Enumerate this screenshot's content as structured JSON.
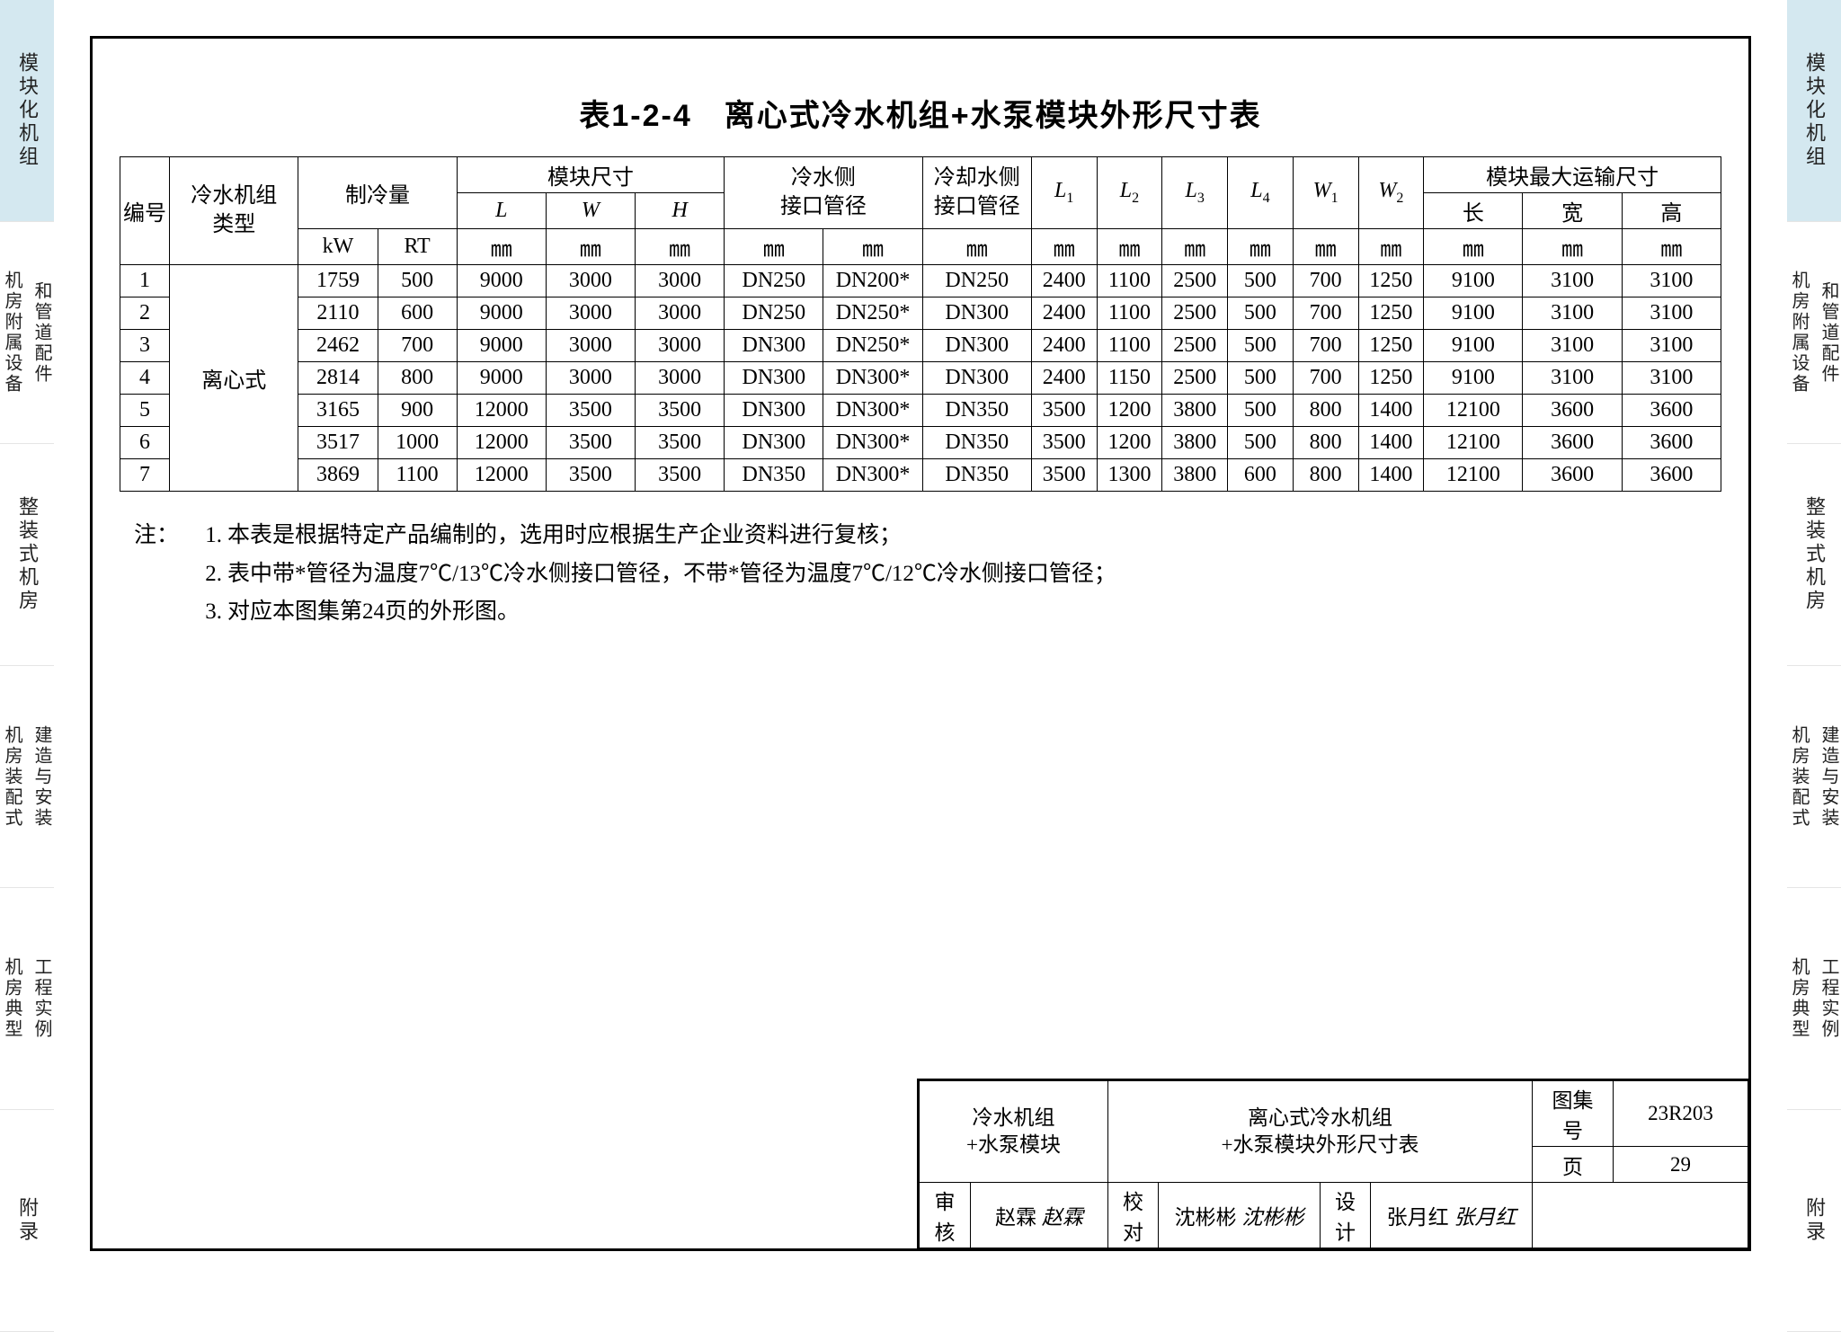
{
  "tabs": [
    {
      "label": "模块化机组",
      "active": true,
      "double": false
    },
    {
      "label": [
        "机房附属设备",
        "和管道配件"
      ],
      "active": false,
      "double": true
    },
    {
      "label": "整装式机房",
      "active": false,
      "double": false
    },
    {
      "label": [
        "机房装配式",
        "建造与安装"
      ],
      "active": false,
      "double": true
    },
    {
      "label": [
        "机房典型",
        "工程实例"
      ],
      "active": false,
      "double": true
    },
    {
      "label": "附录",
      "active": false,
      "double": false
    }
  ],
  "title": "表1-2-4　离心式冷水机组+水泵模块外形尺寸表",
  "headers": {
    "r1": [
      "编号",
      "冷水机组类型",
      "制冷量",
      "模块尺寸",
      "冷水侧接口管径",
      "冷却水侧接口管径",
      "L1",
      "L2",
      "L3",
      "L4",
      "W1",
      "W2",
      "模块最大运输尺寸"
    ],
    "r2_module": [
      "L",
      "W",
      "H"
    ],
    "r2_transport": [
      "长",
      "宽",
      "高"
    ],
    "r2_cool_unit": [
      "kW",
      "RT"
    ],
    "r3_units": [
      "㎜",
      "㎜",
      "㎜",
      "㎜",
      "㎜",
      "㎜",
      "㎜",
      "㎜",
      "㎜",
      "㎜",
      "㎜",
      "㎜",
      "㎜",
      "㎜",
      "㎜"
    ]
  },
  "row_type_label": "离心式",
  "rows": [
    {
      "no": "1",
      "kW": "1759",
      "RT": "500",
      "L": "9000",
      "W": "3000",
      "H": "3000",
      "cw1": "DN250",
      "cw2": "DN200*",
      "cool": "DN250",
      "L1": "2400",
      "L2": "1100",
      "L3": "2500",
      "L4": "500",
      "W1": "700",
      "W2": "1250",
      "TL": "9100",
      "TW": "3100",
      "TH": "3100"
    },
    {
      "no": "2",
      "kW": "2110",
      "RT": "600",
      "L": "9000",
      "W": "3000",
      "H": "3000",
      "cw1": "DN250",
      "cw2": "DN250*",
      "cool": "DN300",
      "L1": "2400",
      "L2": "1100",
      "L3": "2500",
      "L4": "500",
      "W1": "700",
      "W2": "1250",
      "TL": "9100",
      "TW": "3100",
      "TH": "3100"
    },
    {
      "no": "3",
      "kW": "2462",
      "RT": "700",
      "L": "9000",
      "W": "3000",
      "H": "3000",
      "cw1": "DN300",
      "cw2": "DN250*",
      "cool": "DN300",
      "L1": "2400",
      "L2": "1100",
      "L3": "2500",
      "L4": "500",
      "W1": "700",
      "W2": "1250",
      "TL": "9100",
      "TW": "3100",
      "TH": "3100"
    },
    {
      "no": "4",
      "kW": "2814",
      "RT": "800",
      "L": "9000",
      "W": "3000",
      "H": "3000",
      "cw1": "DN300",
      "cw2": "DN300*",
      "cool": "DN300",
      "L1": "2400",
      "L2": "1150",
      "L3": "2500",
      "L4": "500",
      "W1": "700",
      "W2": "1250",
      "TL": "9100",
      "TW": "3100",
      "TH": "3100"
    },
    {
      "no": "5",
      "kW": "3165",
      "RT": "900",
      "L": "12000",
      "W": "3500",
      "H": "3500",
      "cw1": "DN300",
      "cw2": "DN300*",
      "cool": "DN350",
      "L1": "3500",
      "L2": "1200",
      "L3": "3800",
      "L4": "500",
      "W1": "800",
      "W2": "1400",
      "TL": "12100",
      "TW": "3600",
      "TH": "3600"
    },
    {
      "no": "6",
      "kW": "3517",
      "RT": "1000",
      "L": "12000",
      "W": "3500",
      "H": "3500",
      "cw1": "DN300",
      "cw2": "DN300*",
      "cool": "DN350",
      "L1": "3500",
      "L2": "1200",
      "L3": "3800",
      "L4": "500",
      "W1": "800",
      "W2": "1400",
      "TL": "12100",
      "TW": "3600",
      "TH": "3600"
    },
    {
      "no": "7",
      "kW": "3869",
      "RT": "1100",
      "L": "12000",
      "W": "3500",
      "H": "3500",
      "cw1": "DN350",
      "cw2": "DN300*",
      "cool": "DN350",
      "L1": "3500",
      "L2": "1300",
      "L3": "3800",
      "L4": "600",
      "W1": "800",
      "W2": "1400",
      "TL": "12100",
      "TW": "3600",
      "TH": "3600"
    }
  ],
  "notes_label": "注：",
  "notes": [
    "本表是根据特定产品编制的，选用时应根据生产企业资料进行复核；",
    "表中带*管径为温度7℃/13℃冷水侧接口管径，不带*管径为温度7℃/12℃冷水侧接口管径；",
    "对应本图集第24页的外形图。"
  ],
  "title_block": {
    "left_top": "冷水机组",
    "left_bottom": "+水泵模块",
    "center_top": "离心式冷水机组",
    "center_bottom": "+水泵模块外形尺寸表",
    "catalog_label": "图集号",
    "catalog_value": "23R203",
    "page_label": "页",
    "page_value": "29",
    "review_label": "审核",
    "review_name": "赵霖",
    "check_label": "校对",
    "check_name": "沈彬彬",
    "design_label": "设计",
    "design_name": "张月红"
  },
  "col_widths": {
    "no": "50",
    "type": "130",
    "kW": "80",
    "RT": "80",
    "L": "90",
    "W": "90",
    "H": "90",
    "cw1": "100",
    "cw2": "100",
    "cool": "110",
    "L1": "66",
    "L2": "66",
    "L3": "66",
    "L4": "66",
    "W1": "66",
    "W2": "66",
    "TL": "100",
    "TW": "100",
    "TH": "100"
  },
  "colors": {
    "tab_active_bg": "#d4e8f0",
    "border": "#000000",
    "text": "#000000"
  }
}
